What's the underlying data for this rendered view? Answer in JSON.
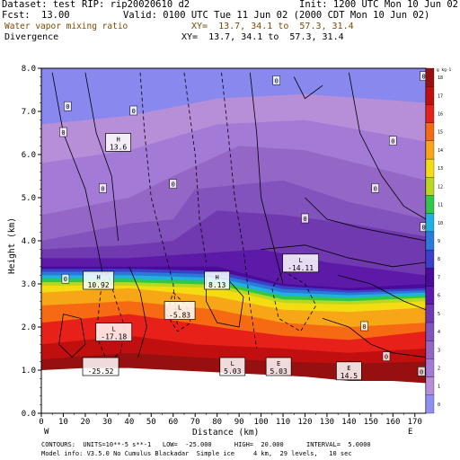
{
  "header": {
    "dataset": "Dataset: test",
    "rip": "RIP: rip20020610 d2",
    "init": "Init: 1200 UTC Mon 10 Jun 02",
    "fcst_label": "Fcst:",
    "fcst_value": "13.00",
    "valid": "Valid: 0100 UTC Tue 11 Jun 02 (2000 CDT Mon 10 Jun 02)",
    "field1": "Water vapor mixing ratio",
    "xy1": "XY=  13.7, 34.1 to  57.3, 31.4",
    "field2": "Divergence",
    "xy2": "XY=  13.7, 34.1 to  57.3, 31.4"
  },
  "footer": {
    "line1": "CONTOURS:  UNITS=10**-5 s**-1   LOW=  -25.000      HIGH=  20.000      INTERVAL=  5.0000",
    "line2": "Model info: V3.5.0 No Cumulus Blackadar  Simple ice     4 km,  29 levels,   10 sec"
  },
  "colors": {
    "sky": "#8888ee",
    "ground": "#ffffff"
  },
  "chart_data": {
    "type": "heatmap",
    "xlabel": "Distance (km)",
    "ylabel": "Height (km)",
    "xlim": [
      0,
      175
    ],
    "ylim": [
      0,
      8
    ],
    "xticks": [
      "0",
      "10",
      "20",
      "30",
      "40",
      "50",
      "60",
      "70",
      "80",
      "90",
      "100",
      "110",
      "120",
      "130",
      "140",
      "150",
      "160",
      "170"
    ],
    "yticks": [
      "0.0",
      "1.0",
      "2.0",
      "3.0",
      "4.0",
      "5.0",
      "6.0",
      "7.0",
      "8.0"
    ],
    "x_endpoints": {
      "left": "W",
      "right": "E"
    },
    "colorbar": {
      "unit": "g kg-1",
      "labels": [
        "0",
        "1",
        "2",
        "3",
        "4",
        "5",
        "6",
        "7",
        "8",
        "9",
        "10",
        "11",
        "12",
        "13",
        "14",
        "15",
        "16",
        "17",
        "18"
      ],
      "colors": [
        "#8f8ff2",
        "#b68fd8",
        "#a37ad5",
        "#9467c6",
        "#8253bc",
        "#7039b0",
        "#5d1aa8",
        "#4a0a9a",
        "#3b40c8",
        "#2a7ad8",
        "#22b0e0",
        "#31c84a",
        "#b8d81f",
        "#f3dd12",
        "#f6a616",
        "#f56a12",
        "#e8201a",
        "#c10f0f",
        "#961010"
      ]
    },
    "annotations": [
      {
        "text": "H",
        "value": "13.6",
        "x": 35,
        "y": 6.2
      },
      {
        "text": "H",
        "value": "10.92",
        "x": 26,
        "y": 3.0
      },
      {
        "text": "H",
        "value": "8.13",
        "x": 80,
        "y": 3.0
      },
      {
        "text": "L",
        "value": "-14.11",
        "x": 118,
        "y": 3.4
      },
      {
        "text": "L",
        "value": "-17.18",
        "x": 33,
        "y": 1.8
      },
      {
        "text": "L",
        "value": "-5.83",
        "x": 63,
        "y": 2.3
      },
      {
        "text": "L",
        "value": "5.03",
        "x": 87,
        "y": 1.0
      },
      {
        "text": "E",
        "value": "5.03",
        "x": 108,
        "y": 1.0
      },
      {
        "text": "E",
        "value": "14.5",
        "x": 140,
        "y": 0.9
      },
      {
        "text": "",
        "value": "-25.52",
        "x": 27,
        "y": 1.0
      }
    ],
    "zero_labels": [
      {
        "x": 12,
        "y": 7.1
      },
      {
        "x": 10,
        "y": 6.5
      },
      {
        "x": 42,
        "y": 7.0
      },
      {
        "x": 28,
        "y": 5.2
      },
      {
        "x": 60,
        "y": 5.3
      },
      {
        "x": 160,
        "y": 6.3
      },
      {
        "x": 152,
        "y": 5.2
      },
      {
        "x": 120,
        "y": 4.5
      },
      {
        "x": 174,
        "y": 4.3
      },
      {
        "x": 11,
        "y": 3.1
      },
      {
        "x": 147,
        "y": 2.0
      },
      {
        "x": 157,
        "y": 1.3
      },
      {
        "x": 173,
        "y": 0.95
      },
      {
        "x": 107,
        "y": 7.7
      },
      {
        "x": 178,
        "y": 7.8
      }
    ]
  }
}
